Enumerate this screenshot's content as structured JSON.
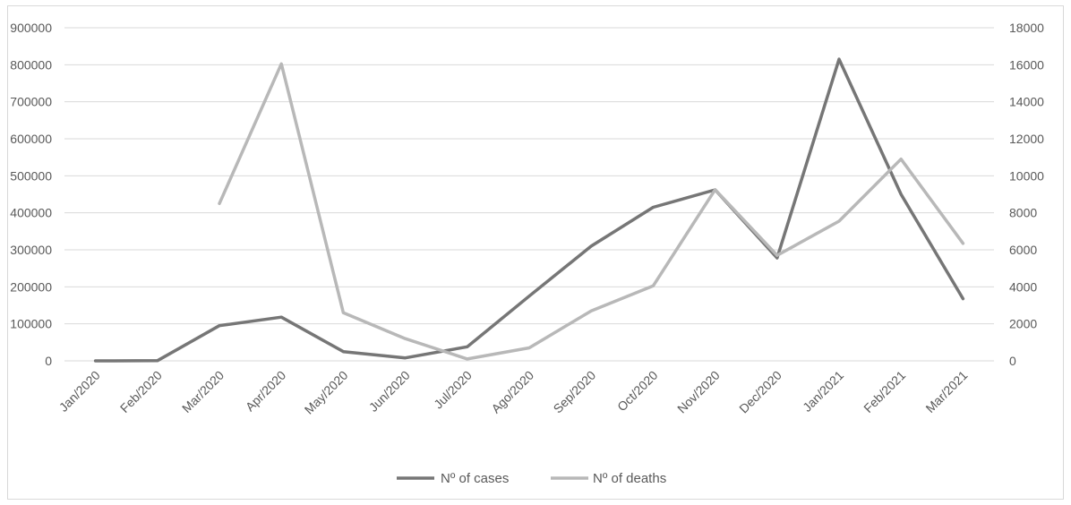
{
  "chart_data": {
    "type": "line",
    "categories": [
      "Jan/2020",
      "Feb/2020",
      "Mar/2020",
      "Apr/2020",
      "May/2020",
      "Jun/2020",
      "Jul/2020",
      "Ago/2020",
      "Sep/2020",
      "Oct/2020",
      "Nov/2020",
      "Dec/2020",
      "Jan/2021",
      "Feb/2021",
      "Mar/2021"
    ],
    "series": [
      {
        "name": "Nº of cases",
        "axis": "left",
        "color": "#767676",
        "values": [
          0,
          500,
          95000,
          118000,
          25000,
          8000,
          38000,
          175000,
          310000,
          415000,
          462000,
          278000,
          815000,
          450000,
          168000
        ]
      },
      {
        "name": "Nº of deaths",
        "axis": "right",
        "color": "#b8b8b8",
        "values": [
          null,
          null,
          8500,
          16050,
          2600,
          1200,
          100,
          700,
          2700,
          4050,
          9250,
          5700,
          7550,
          10900,
          6350
        ]
      }
    ],
    "y_left": {
      "min": 0,
      "max": 900000,
      "step": 100000,
      "ticks": [
        "0",
        "100000",
        "200000",
        "300000",
        "400000",
        "500000",
        "600000",
        "700000",
        "800000",
        "900000"
      ]
    },
    "y_right": {
      "min": 0,
      "max": 18000,
      "step": 2000,
      "ticks": [
        "0",
        "2000",
        "4000",
        "6000",
        "8000",
        "10000",
        "12000",
        "14000",
        "16000",
        "18000"
      ]
    },
    "grid": true,
    "legend_position": "bottom"
  }
}
